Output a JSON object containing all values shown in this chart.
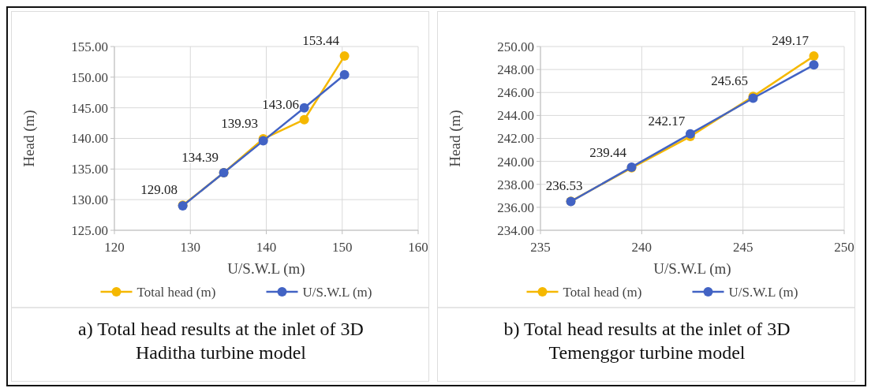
{
  "chart_data": [
    {
      "type": "line",
      "xlabel": "U/S.W.L (m)",
      "ylabel": "Head (m)",
      "x": [
        129,
        134.4,
        139.6,
        145,
        150.3
      ],
      "xlim": [
        120,
        160
      ],
      "xticks": [
        120,
        130,
        140,
        150,
        160
      ],
      "ylim": [
        125,
        155
      ],
      "yticks": [
        {
          "value": 125,
          "label": "125.00"
        },
        {
          "value": 130,
          "label": "130.00"
        },
        {
          "value": 135,
          "label": "135.00"
        },
        {
          "value": 140,
          "label": "140.00"
        },
        {
          "value": 145,
          "label": "145.00"
        },
        {
          "value": 150,
          "label": "150.00"
        },
        {
          "value": 155,
          "label": "155.00"
        }
      ],
      "grid": true,
      "legend": "bottom",
      "marker": "circle",
      "annotations": [
        "a) Total head results at the inlet of 3D Haditha turbine model"
      ],
      "series": [
        {
          "name": "Total head (m)",
          "color": "#f5b800",
          "values": [
            129.08,
            134.39,
            139.93,
            143.06,
            153.44
          ],
          "value_labels": [
            "129.08",
            "134.39",
            "139.93",
            "143.06",
            "153.44"
          ]
        },
        {
          "name": "U/S.W.L (m)",
          "color": "#4263c4",
          "values": [
            129,
            134.4,
            139.6,
            145,
            150.4
          ]
        }
      ]
    },
    {
      "type": "line",
      "xlabel": "U/S.W.L (m)",
      "ylabel": "Head (m)",
      "x": [
        236.5,
        239.5,
        242.4,
        245.5,
        248.5
      ],
      "xlim": [
        235,
        250
      ],
      "xticks": [
        235,
        240,
        245,
        250
      ],
      "ylim": [
        234,
        250
      ],
      "yticks": [
        {
          "value": 234,
          "label": "234.00"
        },
        {
          "value": 236,
          "label": "236.00"
        },
        {
          "value": 238,
          "label": "238.00"
        },
        {
          "value": 240,
          "label": "240.00"
        },
        {
          "value": 242,
          "label": "242.00"
        },
        {
          "value": 244,
          "label": "244.00"
        },
        {
          "value": 246,
          "label": "246.00"
        },
        {
          "value": 248,
          "label": "248.00"
        },
        {
          "value": 250,
          "label": "250.00"
        }
      ],
      "grid": true,
      "legend": "bottom",
      "marker": "circle",
      "annotations": [
        "b) Total head results at the inlet of 3D Temenggor turbine model"
      ],
      "series": [
        {
          "name": "Total head (m)",
          "color": "#f5b800",
          "values": [
            236.53,
            239.44,
            242.17,
            245.65,
            249.17
          ],
          "value_labels": [
            "236.53",
            "239.44",
            "242.17",
            "245.65",
            "249.17"
          ]
        },
        {
          "name": "U/S.W.L (m)",
          "color": "#4263c4",
          "values": [
            236.5,
            239.5,
            242.4,
            245.5,
            248.4
          ]
        }
      ]
    }
  ]
}
